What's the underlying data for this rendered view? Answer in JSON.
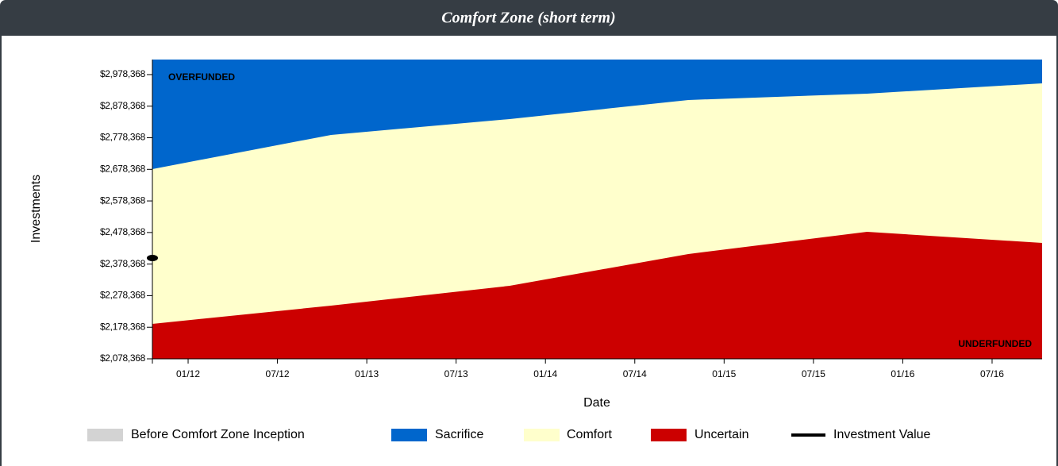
{
  "chart_data": {
    "type": "area",
    "title": "Comfort Zone (short term)",
    "xlabel": "Date",
    "ylabel": "Investments",
    "x": [
      2011.8,
      2012.8,
      2013.8,
      2014.8,
      2015.8,
      2016.78
    ],
    "xlim": [
      2011.8,
      2016.78
    ],
    "xticks": [
      {
        "value": 2012.0,
        "label": "01/12"
      },
      {
        "value": 2012.5,
        "label": "07/12"
      },
      {
        "value": 2013.0,
        "label": "01/13"
      },
      {
        "value": 2013.5,
        "label": "07/13"
      },
      {
        "value": 2014.0,
        "label": "01/14"
      },
      {
        "value": 2014.5,
        "label": "07/14"
      },
      {
        "value": 2015.0,
        "label": "01/15"
      },
      {
        "value": 2015.5,
        "label": "07/15"
      },
      {
        "value": 2016.0,
        "label": "01/16"
      },
      {
        "value": 2016.5,
        "label": "07/16"
      }
    ],
    "ylim": [
      2078368,
      3026000
    ],
    "yticks": [
      {
        "value": 2078368,
        "label": "$2,078,368"
      },
      {
        "value": 2178368,
        "label": "$2,178,368"
      },
      {
        "value": 2278368,
        "label": "$2,278,368"
      },
      {
        "value": 2378368,
        "label": "$2,378,368"
      },
      {
        "value": 2478368,
        "label": "$2,478,368"
      },
      {
        "value": 2578368,
        "label": "$2,578,368"
      },
      {
        "value": 2678368,
        "label": "$2,678,368"
      },
      {
        "value": 2778368,
        "label": "$2,778,368"
      },
      {
        "value": 2878368,
        "label": "$2,878,368"
      },
      {
        "value": 2978368,
        "label": "$2,978,368"
      }
    ],
    "series": [
      {
        "name": "Sacrifice",
        "color": "#0066cc",
        "values": [
          3026000,
          3026000,
          3026000,
          3026000,
          3026000,
          3026000
        ]
      },
      {
        "name": "Comfort",
        "color": "#ffffcc",
        "values": [
          2679200,
          2787300,
          2837600,
          2897900,
          2918000,
          2950700
        ]
      },
      {
        "name": "Uncertain",
        "color": "#cc0000",
        "values": [
          2189000,
          2246800,
          2309600,
          2410200,
          2480600,
          2445400
        ]
      }
    ],
    "inception": {
      "name": "Before Comfort Zone Inception",
      "color": "#d3d3d3"
    },
    "investment": {
      "name": "Investment Value",
      "color": "#000000",
      "x": [
        2011.8
      ],
      "values": [
        2397600
      ]
    },
    "annotations": [
      "OVERFUNDED",
      "UNDERFUNDED"
    ]
  }
}
